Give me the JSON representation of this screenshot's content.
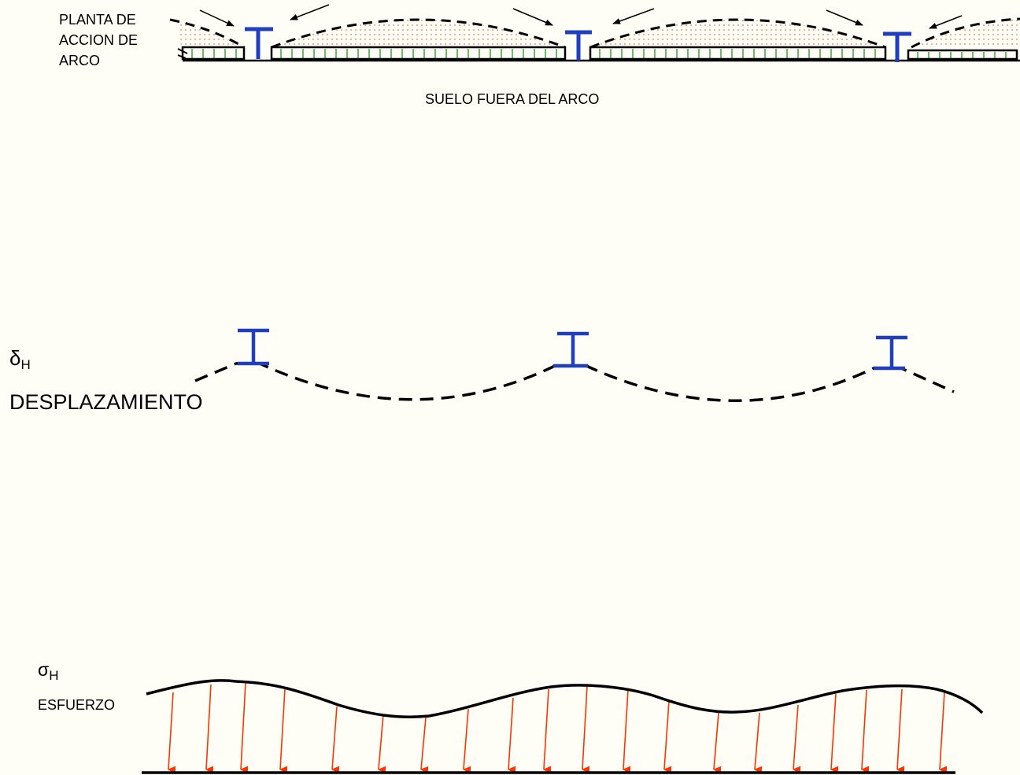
{
  "labels": {
    "plant_line1": "PLANTA DE",
    "plant_line2": "ACCION DE",
    "plant_line3": "ARCO",
    "soil": "SUELO FUERA DEL ARCO",
    "displacement_symbol": "δ",
    "displacement_sub": "H",
    "displacement": "DESPLAZAMIENTO",
    "stress_symbol": "σ",
    "stress_sub": "H",
    "stress": "ESFUERZO"
  },
  "colors": {
    "background": "#fffef6",
    "pile": "#1f3fbf",
    "arch_fill_dots": "#e07a5f",
    "ground_hatch": "#2aa12a",
    "stress_arrow": "#ff3300",
    "line": "#000000"
  }
}
